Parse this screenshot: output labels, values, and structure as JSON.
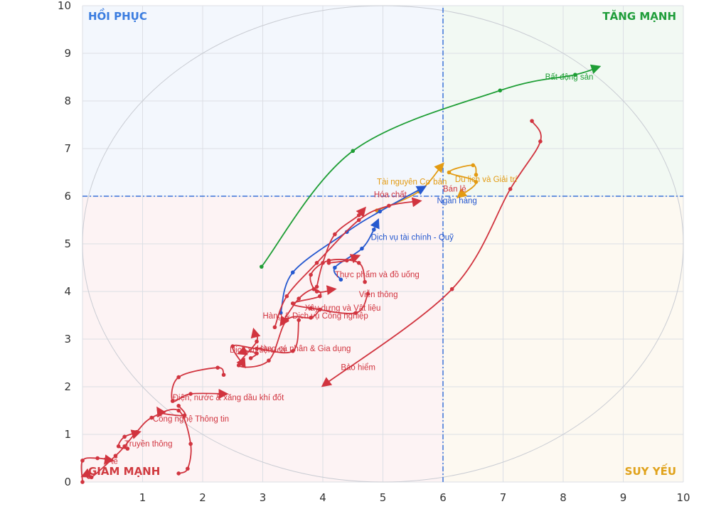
{
  "chart_data": {
    "type": "scatter",
    "xlim": [
      0,
      10
    ],
    "ylim": [
      0,
      10
    ],
    "x_ticks": [
      "1",
      "2",
      "3",
      "4",
      "5",
      "6",
      "7",
      "8",
      "9",
      "10"
    ],
    "y_ticks": [
      "0",
      "1",
      "2",
      "3",
      "4",
      "5",
      "6",
      "7",
      "8",
      "9",
      "10"
    ],
    "grid": true,
    "divider_x": 6,
    "divider_y": 6,
    "quadrants": [
      {
        "label": "HỒI PHỤC",
        "color": "#3b7de0",
        "fill": "#f3f7fd",
        "x": [
          0,
          6
        ],
        "y": [
          6,
          10
        ],
        "anchor": "top-left"
      },
      {
        "label": "TĂNG MẠNH",
        "color": "#1f9d3a",
        "fill": "#f2f9f3",
        "x": [
          6,
          10
        ],
        "y": [
          6,
          10
        ],
        "anchor": "top-right"
      },
      {
        "label": "GIẢM MẠNH",
        "color": "#d03a3f",
        "fill": "#fdf3f4",
        "x": [
          0,
          6
        ],
        "y": [
          0,
          6
        ],
        "anchor": "bottom-left"
      },
      {
        "label": "SUY YẾU",
        "color": "#e0a21b",
        "fill": "#fdf9f1",
        "x": [
          6,
          10
        ],
        "y": [
          0,
          6
        ],
        "anchor": "bottom-right"
      }
    ],
    "series": [
      {
        "name": "Bất động sản",
        "color": "#1e9e35",
        "points": [
          [
            2.98,
            4.52
          ],
          [
            4.5,
            6.95
          ],
          [
            6.95,
            8.22
          ],
          [
            8.2,
            8.55
          ],
          [
            8.6,
            8.72
          ]
        ],
        "label_at": [
          7.7,
          8.45
        ]
      },
      {
        "name": "Bảo hiểm",
        "color": "#d1343f",
        "points": [
          [
            7.48,
            7.58
          ],
          [
            7.62,
            7.15
          ],
          [
            7.12,
            6.15
          ],
          [
            6.15,
            4.05
          ],
          [
            4.0,
            2.02
          ]
        ],
        "label_at": [
          4.3,
          2.35
        ]
      },
      {
        "name": "Du lịch và Giải trí",
        "color": "#e39b12",
        "points": [
          [
            6.55,
            6.45
          ],
          [
            6.5,
            6.65
          ],
          [
            6.1,
            6.5
          ],
          [
            6.55,
            6.3
          ],
          [
            6.25,
            5.98
          ]
        ],
        "label_at": [
          6.2,
          6.3
        ]
      },
      {
        "name": "Tài nguyên Cơ bản",
        "color": "#e39b12",
        "points": [
          [
            4.9,
            5.7
          ],
          [
            5.6,
            6.1
          ],
          [
            6.0,
            6.68
          ]
        ],
        "label_at": [
          4.9,
          6.25
        ]
      },
      {
        "name": "Ngân hàng",
        "color": "#2558cf",
        "points": [
          [
            3.3,
            3.55
          ],
          [
            3.5,
            4.4
          ],
          [
            4.4,
            5.25
          ],
          [
            4.95,
            5.68
          ],
          [
            5.7,
            6.2
          ]
        ],
        "label_at": [
          5.9,
          5.85
        ]
      },
      {
        "name": "Dịch vụ tài chính - Quỹ",
        "color": "#2558cf",
        "points": [
          [
            4.3,
            4.25
          ],
          [
            4.2,
            4.5
          ],
          [
            4.65,
            4.9
          ],
          [
            4.85,
            5.3
          ],
          [
            4.92,
            5.5
          ]
        ],
        "label_at": [
          4.8,
          5.08
        ]
      },
      {
        "name": "Bán lẻ",
        "color": "#d1343f",
        "points": [
          [
            3.2,
            3.25
          ],
          [
            3.4,
            3.9
          ],
          [
            3.9,
            4.6
          ],
          [
            4.6,
            5.5
          ],
          [
            5.1,
            5.8
          ],
          [
            5.62,
            5.9
          ]
        ],
        "label_at": [
          6.0,
          6.1
        ]
      },
      {
        "name": "Hóa chất",
        "color": "#d1343f",
        "points": [
          [
            3.9,
            4.1
          ],
          [
            4.0,
            4.6
          ],
          [
            4.2,
            5.2
          ],
          [
            4.6,
            5.6
          ],
          [
            4.7,
            5.75
          ]
        ],
        "label_at": [
          4.85,
          5.98
        ]
      },
      {
        "name": "Thực phẩm và đồ uống",
        "color": "#d1343f",
        "points": [
          [
            4.7,
            4.2
          ],
          [
            4.6,
            4.6
          ],
          [
            4.1,
            4.65
          ],
          [
            3.8,
            4.35
          ],
          [
            3.9,
            4.0
          ],
          [
            4.2,
            4.05
          ]
        ],
        "label_at": [
          4.2,
          4.3
        ]
      },
      {
        "name": "Viễn thông",
        "color": "#d1343f",
        "points": [
          [
            4.1,
            4.6
          ],
          [
            4.4,
            4.65
          ],
          [
            4.6,
            4.75
          ]
        ],
        "label_at": [
          4.6,
          3.88
        ]
      },
      {
        "name": "Xây dựng và Vật liệu",
        "color": "#d1343f",
        "points": [
          [
            4.75,
            3.95
          ],
          [
            4.55,
            3.55
          ],
          [
            3.8,
            3.65
          ],
          [
            3.5,
            3.75
          ],
          [
            3.95,
            3.9
          ],
          [
            3.85,
            4.05
          ],
          [
            3.6,
            3.85
          ],
          [
            3.3,
            3.3
          ]
        ],
        "label_at": [
          3.7,
          3.6
        ]
      },
      {
        "name": "Hàng & Dịch vụ Công nghiệp",
        "color": "#d1343f",
        "points": [
          [
            3.95,
            3.62
          ],
          [
            3.8,
            3.45
          ],
          [
            3.4,
            3.4
          ],
          [
            3.1,
            2.55
          ],
          [
            2.6,
            2.45
          ],
          [
            2.9,
            2.95
          ],
          [
            2.85,
            3.2
          ]
        ],
        "label_at": [
          3.0,
          3.43
        ]
      },
      {
        "name": "Hàng cá nhân & Gia dụng",
        "color": "#d1343f",
        "points": [
          [
            3.6,
            3.4
          ],
          [
            3.5,
            2.75
          ],
          [
            2.9,
            2.8
          ],
          [
            2.5,
            2.85
          ],
          [
            2.7,
            2.42
          ]
        ],
        "label_at": [
          2.9,
          2.75
        ]
      },
      {
        "name": "Dịch vụ tiện ích",
        "color": "#d1343f",
        "points": [
          [
            2.8,
            2.6
          ],
          [
            2.9,
            2.7
          ],
          [
            2.7,
            2.75
          ],
          [
            2.6,
            2.7
          ]
        ],
        "label_at": [
          2.45,
          2.72
        ]
      },
      {
        "name": "Điện, nước & xăng dầu khí đốt",
        "color": "#d1343f",
        "points": [
          [
            2.35,
            2.25
          ],
          [
            2.25,
            2.4
          ],
          [
            1.6,
            2.2
          ],
          [
            1.5,
            1.7
          ],
          [
            1.8,
            1.85
          ],
          [
            2.4,
            1.85
          ]
        ],
        "label_at": [
          1.5,
          1.72
        ]
      },
      {
        "name": "Công nghệ Thông tin",
        "color": "#d1343f",
        "points": [
          [
            1.6,
            1.6
          ],
          [
            1.7,
            1.4
          ],
          [
            1.3,
            1.45
          ],
          [
            1.25,
            1.55
          ]
        ],
        "label_at": [
          1.17,
          1.27
        ]
      },
      {
        "name": "Truyền thông",
        "color": "#d1343f",
        "points": [
          [
            0.75,
            0.7
          ],
          [
            0.6,
            0.75
          ],
          [
            0.7,
            0.95
          ],
          [
            0.95,
            1.05
          ]
        ],
        "label_at": [
          0.7,
          0.75
        ]
      },
      {
        "name": "Y tế",
        "color": "#d1343f",
        "points": [
          [
            0.0,
            0.0
          ],
          [
            0.0,
            0.45
          ],
          [
            0.25,
            0.5
          ],
          [
            0.5,
            0.45
          ]
        ],
        "label_at": [
          0.35,
          0.38
        ]
      },
      {
        "name": "",
        "color": "#d1343f",
        "points": [
          [
            1.6,
            0.18
          ],
          [
            1.75,
            0.28
          ],
          [
            1.8,
            0.8
          ],
          [
            1.6,
            1.5
          ],
          [
            1.15,
            1.35
          ],
          [
            0.9,
            1.05
          ],
          [
            0.7,
            0.75
          ],
          [
            0.55,
            0.55
          ],
          [
            0.15,
            0.1
          ],
          [
            0.05,
            0.15
          ],
          [
            0.0,
            0.12
          ]
        ],
        "label_at": null
      }
    ]
  }
}
